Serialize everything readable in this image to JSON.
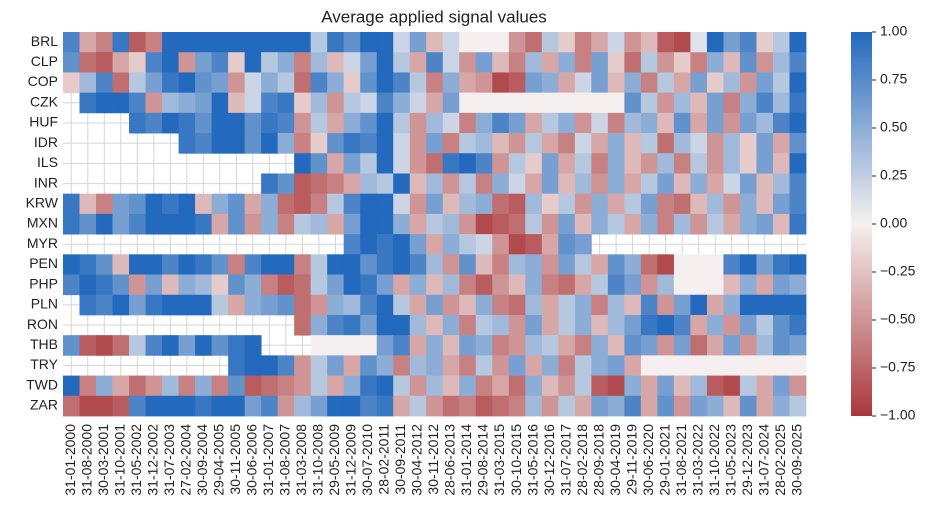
{
  "chart_data": {
    "type": "heatmap",
    "title": "Average applied signal values",
    "x_categories": [
      "31-01-2000",
      "31-08-2000",
      "30-03-2001",
      "31-10-2001",
      "31-05-2002",
      "31-12-2002",
      "31-07-2003",
      "27-02-2004",
      "30-09-2004",
      "29-04-2005",
      "30-11-2005",
      "30-06-2006",
      "31-01-2007",
      "31-08-2007",
      "31-03-2008",
      "31-10-2008",
      "29-05-2009",
      "31-12-2009",
      "30-07-2010",
      "28-02-2011",
      "30-09-2011",
      "30-04-2012",
      "30-11-2012",
      "28-06-2013",
      "31-01-2014",
      "29-08-2014",
      "31-03-2015",
      "30-10-2015",
      "31-05-2016",
      "30-12-2016",
      "31-07-2017",
      "28-02-2018",
      "28-09-2018",
      "30-04-2019",
      "29-11-2019",
      "30-06-2020",
      "29-01-2021",
      "31-08-2021",
      "31-03-2022",
      "31-10-2022",
      "31-05-2023",
      "29-12-2023",
      "31-07-2024",
      "28-02-2025",
      "30-09-2025"
    ],
    "y_categories": [
      "BRL",
      "CLP",
      "COP",
      "CZK",
      "HUF",
      "IDR",
      "ILS",
      "INR",
      "KRW",
      "MXN",
      "MYR",
      "PEN",
      "PHP",
      "PLN",
      "RON",
      "THB",
      "TRY",
      "TWD",
      "ZAR"
    ],
    "values": [
      [
        0.8,
        -0.4,
        -0.6,
        0.9,
        -0.8,
        -0.6,
        1,
        1,
        1,
        1,
        1,
        1,
        1,
        1,
        1,
        0.3,
        0.9,
        0.7,
        1,
        1,
        0.2,
        0.6,
        -0.3,
        0.2,
        0,
        0,
        0,
        -0.5,
        -0.7,
        0.3,
        -0.2,
        -0.6,
        -0.4,
        0.2,
        -0.5,
        -0.3,
        -0.8,
        -0.9,
        0.1,
        1,
        0.6,
        0.8,
        -0.2,
        0.3,
        1
      ],
      [
        0.7,
        -0.7,
        -0.8,
        -0.4,
        -0.2,
        0.8,
        1,
        -0.5,
        0.6,
        0.8,
        -0.2,
        1,
        0.3,
        0.5,
        -0.6,
        0.4,
        -0.3,
        0.2,
        0.6,
        1,
        0.3,
        -0.4,
        0.8,
        0.2,
        -0.5,
        0.6,
        -0.3,
        -0.6,
        0.4,
        -0.4,
        0.5,
        -0.6,
        0.6,
        -0.2,
        -0.7,
        0.3,
        -0.5,
        -0.2,
        -0.6,
        0.5,
        -0.3,
        0.7,
        -0.5,
        0.4,
        0.8
      ],
      [
        -0.2,
        0.4,
        0.8,
        -0.7,
        0.3,
        0.6,
        0.9,
        1,
        0.7,
        0.6,
        -0.5,
        0.2,
        0.5,
        0.3,
        -0.7,
        0.8,
        0.5,
        -0.2,
        0.7,
        1,
        0.8,
        0.3,
        -0.6,
        0.5,
        -0.4,
        -0.5,
        -0.9,
        -0.8,
        0.6,
        0.5,
        -0.4,
        0.2,
        0.6,
        -0.3,
        0.5,
        -0.6,
        0.3,
        -0.4,
        0.6,
        -0.2,
        0.4,
        -0.5,
        0.6,
        0.3,
        1
      ],
      [
        null,
        0.9,
        1,
        1,
        0.8,
        -0.5,
        0.4,
        0.5,
        0.6,
        1,
        -0.3,
        0.2,
        0.8,
        0.9,
        -0.2,
        0.4,
        -0.5,
        0.3,
        0.2,
        0.8,
        0.5,
        0.2,
        -0.4,
        0.6,
        0,
        0,
        0,
        0,
        0,
        0,
        0,
        0,
        0,
        0,
        0.7,
        0.3,
        -0.5,
        0.4,
        -0.3,
        0.6,
        -0.6,
        0.5,
        0.8,
        0.4,
        0.9
      ],
      [
        null,
        null,
        null,
        null,
        0.9,
        0.8,
        1,
        0.9,
        0.7,
        1,
        1,
        0.7,
        0.9,
        0.8,
        -0.5,
        0.3,
        -0.4,
        0.5,
        0.7,
        1,
        0.3,
        -0.5,
        0.4,
        0.2,
        -0.6,
        0.5,
        0.8,
        0.6,
        -0.4,
        0.3,
        0.5,
        -0.5,
        0.2,
        -0.6,
        0.4,
        0.5,
        -0.3,
        0.7,
        -0.4,
        0.6,
        -0.5,
        0.6,
        0.4,
        0.8,
        1
      ],
      [
        null,
        null,
        null,
        null,
        null,
        null,
        null,
        0.9,
        0.8,
        1,
        1,
        0.7,
        1,
        0.5,
        -0.6,
        -0.2,
        0.7,
        0.9,
        0.8,
        1,
        0.2,
        -0.5,
        0.6,
        -0.6,
        0.3,
        0.4,
        -0.3,
        -0.5,
        0.3,
        -0.4,
        -0.6,
        0.2,
        -0.4,
        0.5,
        -0.3,
        0.3,
        -0.7,
        0.4,
        0.2,
        -0.5,
        0.4,
        -0.2,
        0.6,
        -0.4,
        0.7
      ],
      [
        null,
        null,
        null,
        null,
        null,
        null,
        null,
        null,
        null,
        null,
        null,
        null,
        null,
        null,
        1,
        0.7,
        -0.4,
        0.6,
        0.3,
        1,
        0.2,
        -0.5,
        -0.7,
        0.9,
        1,
        0.8,
        -0.5,
        0.3,
        -0.2,
        0.6,
        -0.4,
        0.3,
        -0.6,
        0.5,
        -0.3,
        -0.5,
        0.4,
        -0.6,
        0.3,
        -0.5,
        0.4,
        -0.2,
        0.6,
        -0.3,
        1
      ],
      [
        null,
        null,
        null,
        null,
        null,
        null,
        null,
        null,
        null,
        null,
        null,
        null,
        0.9,
        0.7,
        -0.8,
        -0.7,
        -0.6,
        -0.4,
        0.4,
        0.3,
        1,
        -0.3,
        0.4,
        -0.5,
        0.3,
        -0.6,
        0.5,
        0.2,
        -0.4,
        0.6,
        -0.3,
        0.4,
        -0.5,
        0.5,
        -0.4,
        0.3,
        0.6,
        -0.3,
        0.5,
        -0.4,
        0.2,
        0.6,
        -0.3,
        0.4,
        0.8
      ],
      [
        0.9,
        -0.3,
        -0.6,
        0.6,
        0.7,
        1,
        0.9,
        1,
        -0.3,
        0.5,
        0.7,
        -0.4,
        0.5,
        -0.7,
        -0.8,
        -0.6,
        0.3,
        0.8,
        1,
        1,
        0.2,
        -0.5,
        0.6,
        -0.3,
        0.4,
        0.5,
        -0.7,
        -0.8,
        0.4,
        -0.2,
        0.3,
        -0.5,
        0.5,
        -0.4,
        0.3,
        0.6,
        -0.6,
        -0.7,
        -0.3,
        0.4,
        -0.5,
        0.5,
        -0.3,
        0.6,
        0.8
      ],
      [
        0.9,
        0.7,
        1,
        0.6,
        0.8,
        1,
        1,
        1,
        0.9,
        -0.4,
        0.7,
        -0.5,
        0.5,
        -0.6,
        0.3,
        0.4,
        -0.4,
        0.6,
        1,
        1,
        0.5,
        -0.4,
        0.3,
        0.4,
        -0.5,
        -0.9,
        -0.8,
        -0.7,
        0.3,
        -0.5,
        0.6,
        -0.3,
        0.5,
        0.3,
        -0.4,
        0.5,
        -0.6,
        0.4,
        -0.5,
        0.3,
        -0.4,
        0.5,
        0.6,
        -0.3,
        0.9
      ],
      [
        null,
        null,
        null,
        null,
        null,
        null,
        null,
        null,
        null,
        null,
        null,
        null,
        null,
        null,
        null,
        null,
        null,
        0.8,
        1,
        0.9,
        1,
        0.6,
        -0.4,
        0.5,
        0.3,
        0.2,
        -0.5,
        -0.9,
        -0.8,
        -0.4,
        0.7,
        0.6,
        null,
        null,
        null,
        null,
        null,
        null,
        null,
        null,
        null,
        null,
        null,
        null,
        null
      ],
      [
        1,
        0.9,
        0.7,
        -0.3,
        1,
        1,
        0.8,
        1,
        0.9,
        0.7,
        -0.6,
        0.8,
        1,
        1,
        -0.6,
        0.3,
        1,
        1,
        0.7,
        0.9,
        1,
        0.8,
        0.4,
        -0.5,
        0.7,
        -0.3,
        -0.6,
        0.4,
        0.5,
        -0.5,
        0.6,
        0.3,
        -0.4,
        0.7,
        0.5,
        -0.7,
        -0.9,
        0,
        0,
        0,
        0.8,
        1,
        0.6,
        0.9,
        1
      ],
      [
        0.8,
        1,
        0.9,
        0.7,
        -0.5,
        0.6,
        -0.3,
        0.5,
        0.4,
        -0.2,
        0.7,
        0.5,
        -0.6,
        -0.8,
        -0.7,
        0.3,
        0.6,
        1,
        0.9,
        0.6,
        -0.4,
        0.5,
        -0.3,
        0.4,
        -0.6,
        -0.8,
        -0.5,
        -0.3,
        0.5,
        -0.6,
        -0.7,
        -0.4,
        0.3,
        0.8,
        0.6,
        -0.5,
        0.4,
        0,
        0,
        0,
        -0.3,
        0.5,
        -0.4,
        0.6,
        0.5
      ],
      [
        null,
        0.9,
        0.8,
        1,
        0.6,
        0.9,
        1,
        1,
        1,
        0.3,
        -0.4,
        0.5,
        0.6,
        0.7,
        -0.7,
        -0.5,
        0.5,
        0.4,
        0.8,
        1,
        0.3,
        -0.4,
        0.6,
        -0.5,
        -0.3,
        0.5,
        -0.6,
        -0.7,
        0.4,
        -0.4,
        0.3,
        0.5,
        -0.6,
        0.4,
        -0.3,
        0.8,
        -0.5,
        0.6,
        1,
        -0.4,
        0.5,
        1,
        1,
        1,
        1
      ],
      [
        null,
        null,
        null,
        null,
        null,
        null,
        null,
        null,
        null,
        null,
        null,
        null,
        null,
        null,
        -0.7,
        0.5,
        0.8,
        0.9,
        0.6,
        1,
        1,
        0.4,
        -0.3,
        0.5,
        -0.6,
        0.3,
        0.4,
        -0.5,
        0.6,
        -0.4,
        0.3,
        0.5,
        -0.3,
        0.4,
        0.6,
        0.9,
        1,
        0.8,
        -0.4,
        0.5,
        -0.5,
        0.6,
        0.3,
        0.7,
        0.9
      ],
      [
        0.7,
        -0.8,
        -0.9,
        -0.7,
        0.3,
        0.8,
        1,
        0.6,
        1,
        0.7,
        0.9,
        1,
        null,
        null,
        null,
        0,
        0,
        0,
        0,
        0.6,
        0.8,
        -0.4,
        0.5,
        -0.3,
        0.6,
        0.5,
        -0.6,
        -0.5,
        0.4,
        0.3,
        -0.4,
        -0.6,
        0.5,
        -0.3,
        0.7,
        0.6,
        -0.5,
        0.6,
        -0.7,
        -0.4,
        0.6,
        -0.5,
        0.4,
        0.7,
        0.6
      ],
      [
        null,
        null,
        null,
        null,
        null,
        null,
        null,
        null,
        null,
        null,
        0.9,
        1,
        1,
        0.8,
        -0.5,
        0.3,
        0.6,
        -0.4,
        0.7,
        0.5,
        -0.6,
        0.4,
        0.5,
        -0.4,
        -0.6,
        0.3,
        -0.5,
        0.6,
        -0.4,
        0.5,
        -0.6,
        0.3,
        0.5,
        0.6,
        -0.4,
        0,
        0,
        0,
        0,
        0,
        0,
        0,
        0,
        0,
        0
      ],
      [
        1,
        -0.6,
        0.5,
        -0.4,
        -0.7,
        -0.5,
        0.4,
        -0.6,
        0.5,
        -0.6,
        0.7,
        -0.8,
        -0.7,
        -0.6,
        -0.5,
        0.3,
        -0.4,
        0.5,
        0.9,
        1,
        0.3,
        -0.5,
        0.4,
        -0.3,
        0.5,
        -0.6,
        -0.4,
        -0.7,
        0.5,
        -0.3,
        -0.5,
        0.3,
        -0.8,
        -0.9,
        0.5,
        -0.4,
        0.6,
        -0.3,
        0.4,
        -0.8,
        -0.9,
        0.3,
        -0.4,
        0.6,
        -0.5
      ],
      [
        -0.7,
        -0.9,
        -0.9,
        -0.8,
        0.8,
        1,
        1,
        1,
        0.9,
        1,
        1,
        0.6,
        0.8,
        -0.5,
        0.4,
        0.6,
        1,
        1,
        0.8,
        0.9,
        -0.4,
        0.3,
        -0.5,
        -0.7,
        -0.6,
        -0.8,
        -0.7,
        -0.6,
        0.4,
        -0.5,
        0.3,
        -0.4,
        0.6,
        0.5,
        0.8,
        -0.4,
        0.7,
        -0.5,
        0.6,
        0.5,
        -0.3,
        0.7,
        -0.4,
        0.5,
        0.3
      ]
    ],
    "zlim": [
      -1,
      1
    ],
    "zticks": [
      {
        "value": 1,
        "label": "1.00"
      },
      {
        "value": 0.75,
        "label": "0.75"
      },
      {
        "value": 0.5,
        "label": "0.50"
      },
      {
        "value": 0.25,
        "label": "0.25"
      },
      {
        "value": 0,
        "label": "0.00"
      },
      {
        "value": -0.25,
        "label": "−0.25"
      },
      {
        "value": -0.5,
        "label": "−0.50"
      },
      {
        "value": -0.75,
        "label": "−0.75"
      },
      {
        "value": -1,
        "label": "−1.00"
      }
    ],
    "colors": [
      "#a9373b",
      "#f5f0ef",
      "#2369bd"
    ],
    "grid": true
  }
}
